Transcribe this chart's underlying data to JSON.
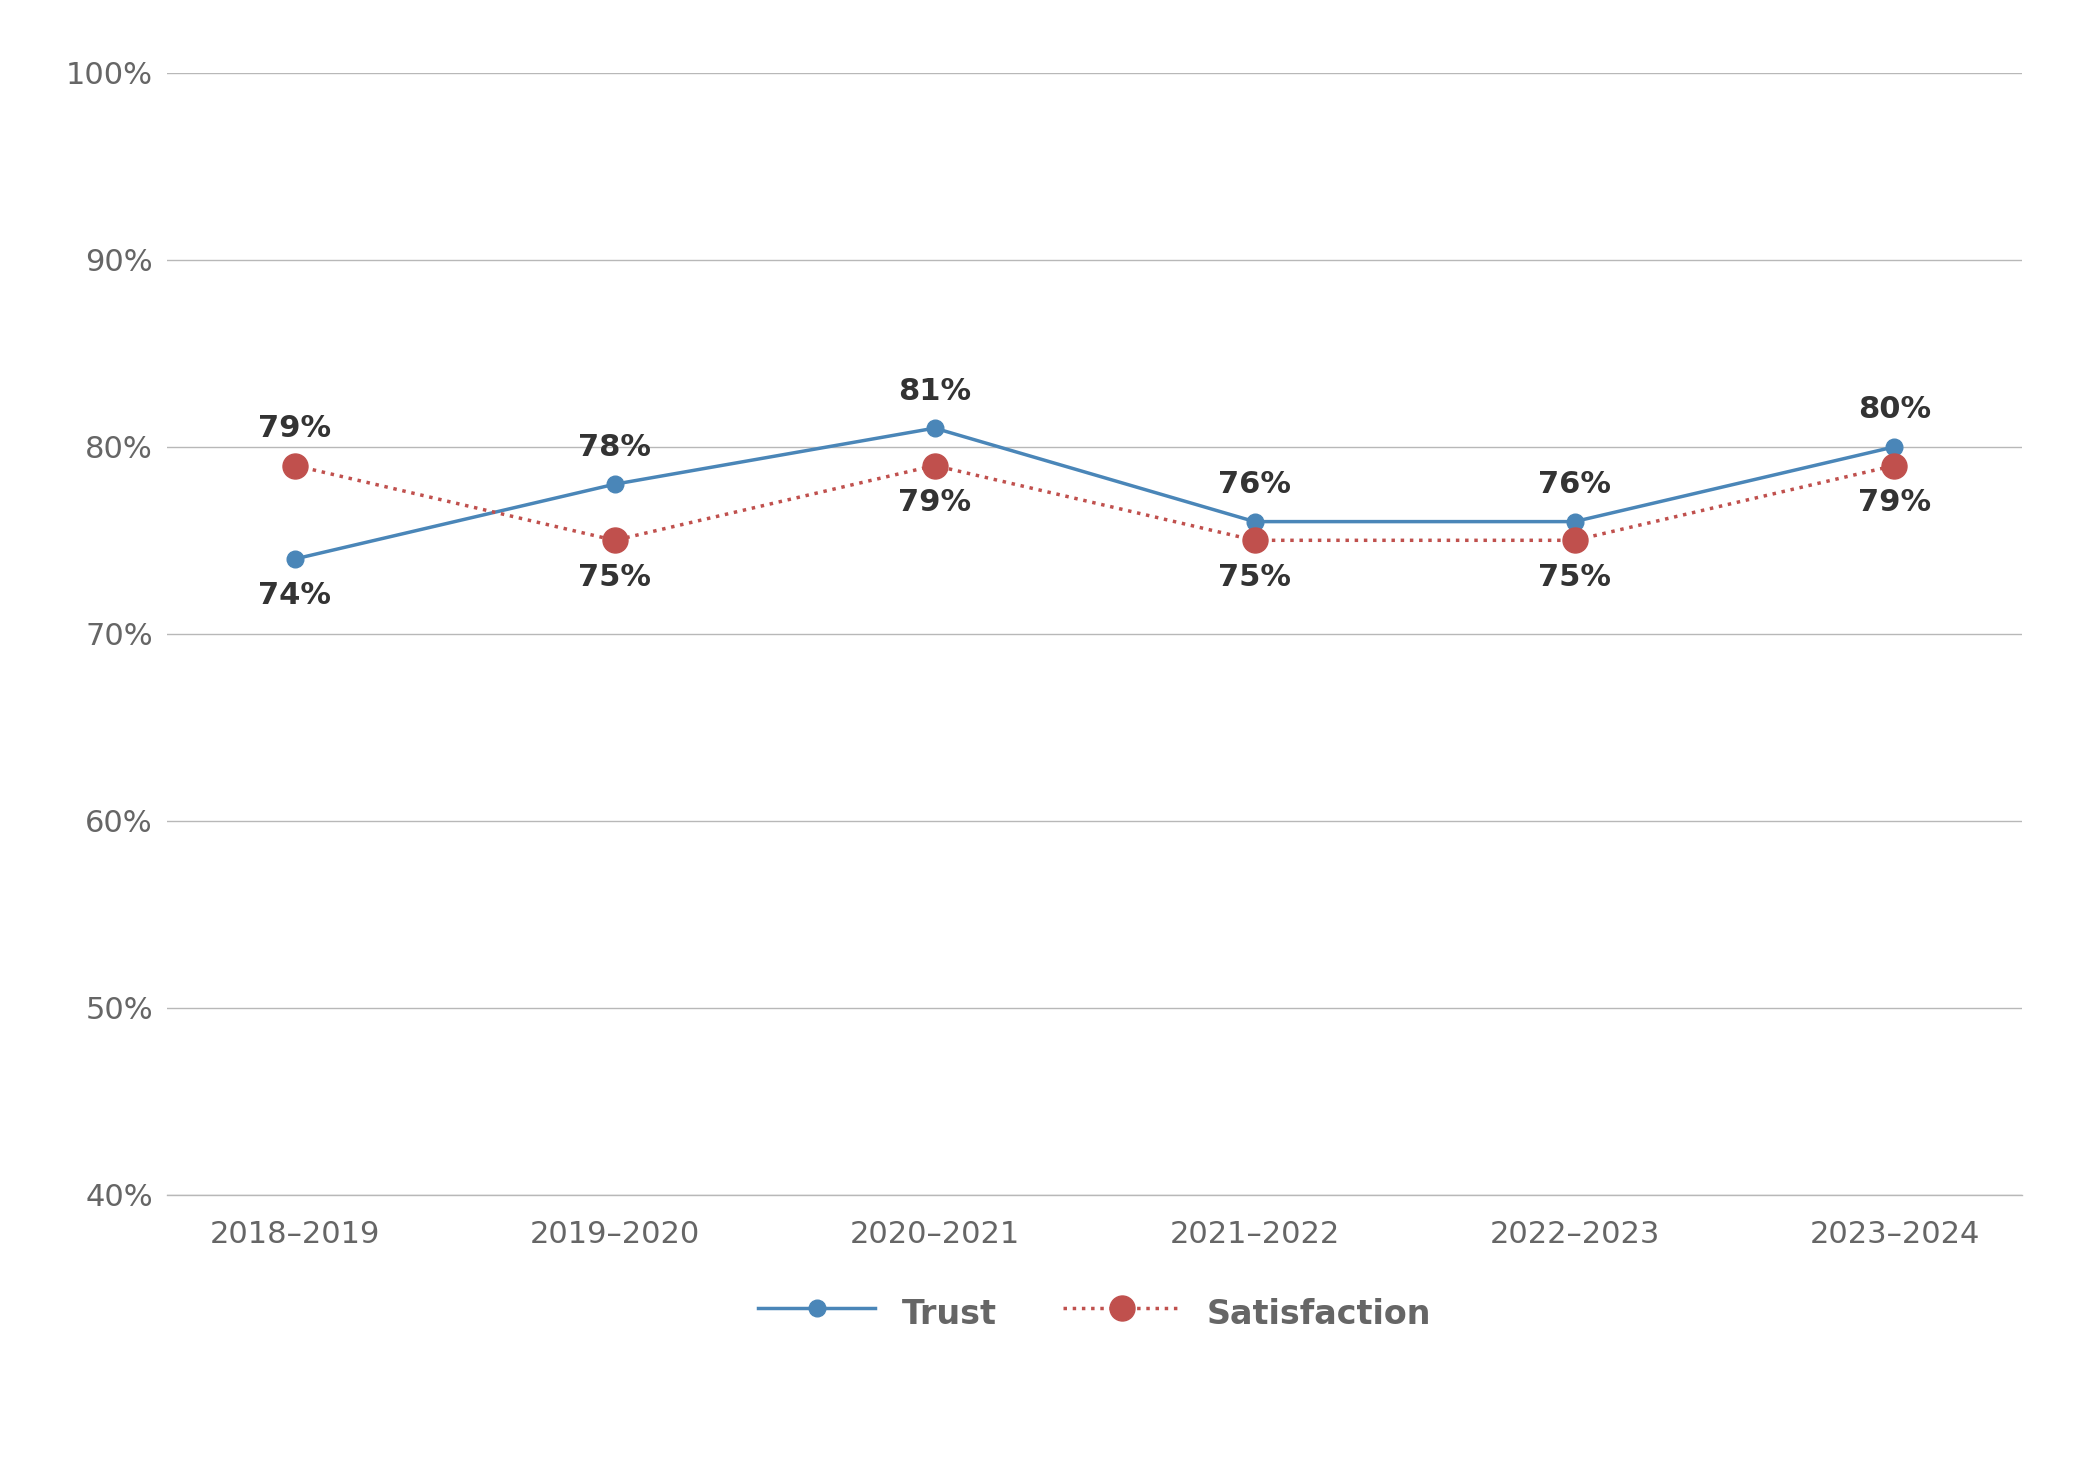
{
  "categories": [
    "2018–2019",
    "2019–2020",
    "2020–2021",
    "2021–2022",
    "2022–2023",
    "2023–2024"
  ],
  "trust": [
    74,
    78,
    81,
    76,
    76,
    80
  ],
  "satisfaction": [
    79,
    75,
    79,
    75,
    75,
    79
  ],
  "trust_color": "#4a86b8",
  "satisfaction_color": "#c0504d",
  "ylim": [
    40,
    100
  ],
  "yticks": [
    40,
    50,
    60,
    70,
    80,
    90,
    100
  ],
  "background_color": "#ffffff",
  "grid_color": "#b8b8b8",
  "trust_label": "Trust",
  "satisfaction_label": "Satisfaction",
  "tick_fontsize": 22,
  "annotation_fontsize": 22,
  "legend_fontsize": 24,
  "line_width": 2.5,
  "trust_marker_size": 12,
  "sat_marker_size": 18,
  "tick_color": "#666666",
  "annotation_color": "#333333"
}
